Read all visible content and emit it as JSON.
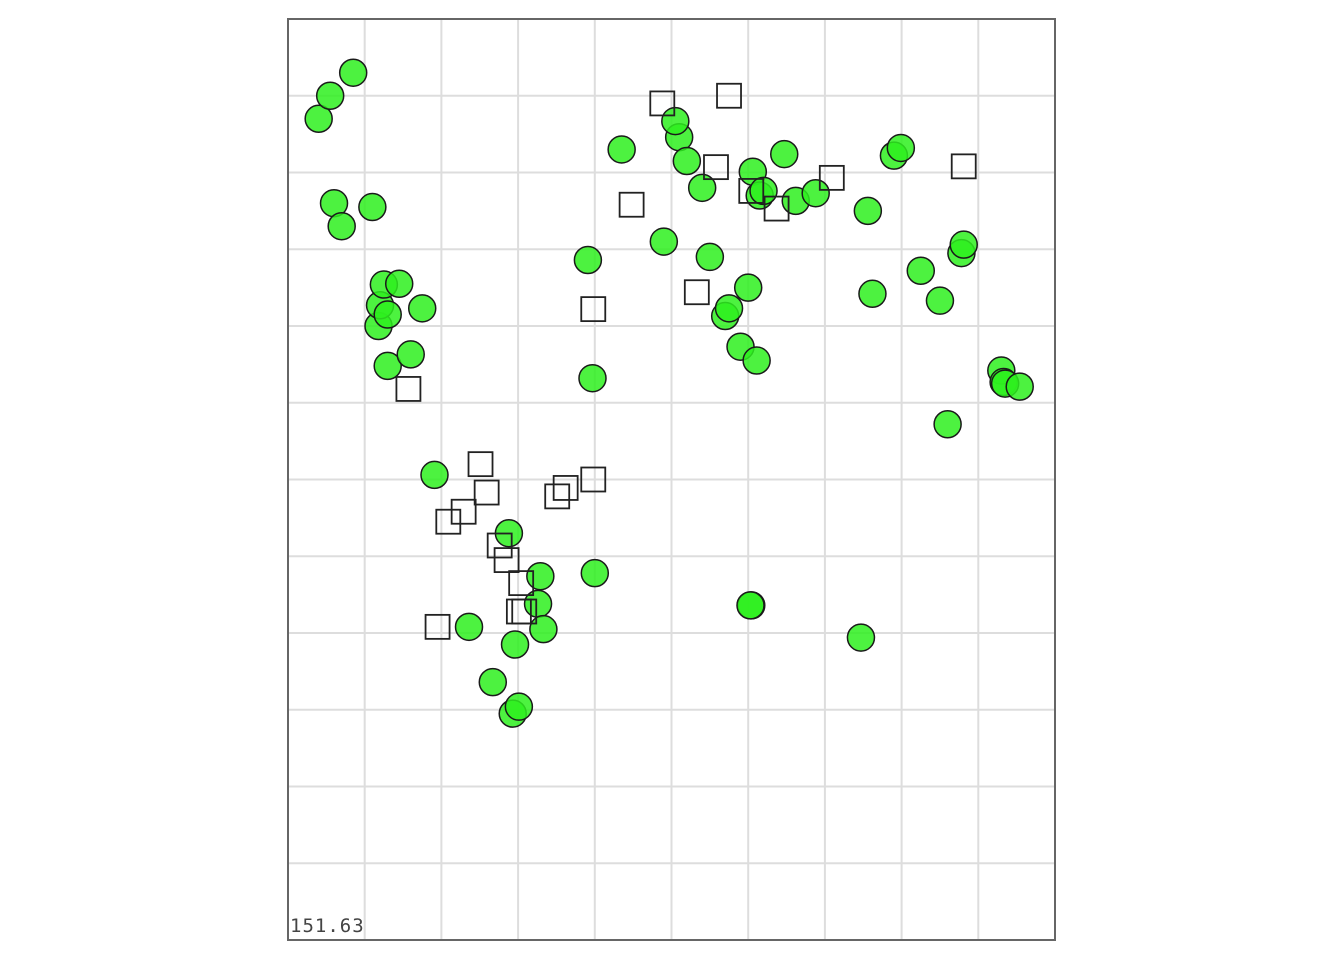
{
  "chart_data": {
    "type": "scatter",
    "title": "",
    "xlabel": "",
    "ylabel": "",
    "xlim": [
      0,
      10
    ],
    "ylim": [
      0,
      12
    ],
    "grid": true,
    "corner_label": "151.63",
    "colors": {
      "circle_fill": "#2ef01e",
      "circle_stroke": "#1a1a1a",
      "square_stroke": "#222222",
      "grid": "#dddddd",
      "frame": "#666666"
    },
    "series": [
      {
        "marker": "circle",
        "points": [
          [
            0.4,
            10.7
          ],
          [
            0.55,
            11.0
          ],
          [
            0.6,
            9.6
          ],
          [
            0.7,
            9.3
          ],
          [
            0.85,
            11.3
          ],
          [
            1.1,
            9.55
          ],
          [
            1.18,
            8.0
          ],
          [
            1.2,
            8.27
          ],
          [
            1.25,
            8.54
          ],
          [
            1.3,
            7.48
          ],
          [
            1.45,
            8.55
          ],
          [
            1.3,
            8.15
          ],
          [
            1.6,
            7.63
          ],
          [
            1.75,
            8.23
          ],
          [
            1.91,
            6.06
          ],
          [
            2.36,
            4.08
          ],
          [
            2.67,
            3.36
          ],
          [
            2.88,
            5.3
          ],
          [
            2.93,
            2.95
          ],
          [
            2.96,
            3.85
          ],
          [
            3.01,
            3.04
          ],
          [
            3.26,
            4.38
          ],
          [
            3.29,
            4.74
          ],
          [
            3.33,
            4.05
          ],
          [
            3.91,
            8.86
          ],
          [
            3.97,
            7.32
          ],
          [
            4.0,
            4.78
          ],
          [
            4.35,
            10.3
          ],
          [
            4.9,
            9.1
          ],
          [
            5.1,
            10.46
          ],
          [
            5.05,
            10.67
          ],
          [
            5.2,
            10.15
          ],
          [
            5.4,
            9.8
          ],
          [
            5.5,
            8.9
          ],
          [
            5.7,
            8.13
          ],
          [
            5.75,
            8.23
          ],
          [
            5.9,
            7.73
          ],
          [
            6.0,
            8.5
          ],
          [
            6.06,
            10.01
          ],
          [
            6.15,
            9.7
          ],
          [
            6.11,
            7.55
          ],
          [
            6.2,
            9.76
          ],
          [
            6.47,
            10.24
          ],
          [
            6.62,
            9.63
          ],
          [
            6.88,
            9.73
          ],
          [
            7.56,
            9.5
          ],
          [
            7.62,
            8.42
          ],
          [
            7.47,
            3.94
          ],
          [
            7.9,
            10.22
          ],
          [
            7.99,
            10.32
          ],
          [
            8.25,
            8.72
          ],
          [
            8.5,
            8.33
          ],
          [
            8.6,
            6.72
          ],
          [
            8.78,
            8.95
          ],
          [
            8.81,
            9.06
          ],
          [
            9.3,
            7.42
          ],
          [
            9.33,
            7.27
          ],
          [
            9.35,
            7.25
          ],
          [
            9.54,
            7.21
          ],
          [
            6.04,
            4.36
          ],
          [
            6.03,
            4.36
          ]
        ]
      },
      {
        "marker": "square",
        "points": [
          [
            1.57,
            7.18
          ],
          [
            1.95,
            4.08
          ],
          [
            2.09,
            5.45
          ],
          [
            2.29,
            5.58
          ],
          [
            2.51,
            6.2
          ],
          [
            2.59,
            5.83
          ],
          [
            2.76,
            5.14
          ],
          [
            2.85,
            4.95
          ],
          [
            3.01,
            4.28
          ],
          [
            3.04,
            4.65
          ],
          [
            3.08,
            4.28
          ],
          [
            3.51,
            5.78
          ],
          [
            3.62,
            5.89
          ],
          [
            3.98,
            6.0
          ],
          [
            3.98,
            8.22
          ],
          [
            4.48,
            9.58
          ],
          [
            4.88,
            10.9
          ],
          [
            5.33,
            8.44
          ],
          [
            5.58,
            10.07
          ],
          [
            5.75,
            11.0
          ],
          [
            6.04,
            9.76
          ],
          [
            6.37,
            9.53
          ],
          [
            7.09,
            9.93
          ],
          [
            8.81,
            10.08
          ]
        ]
      }
    ]
  }
}
